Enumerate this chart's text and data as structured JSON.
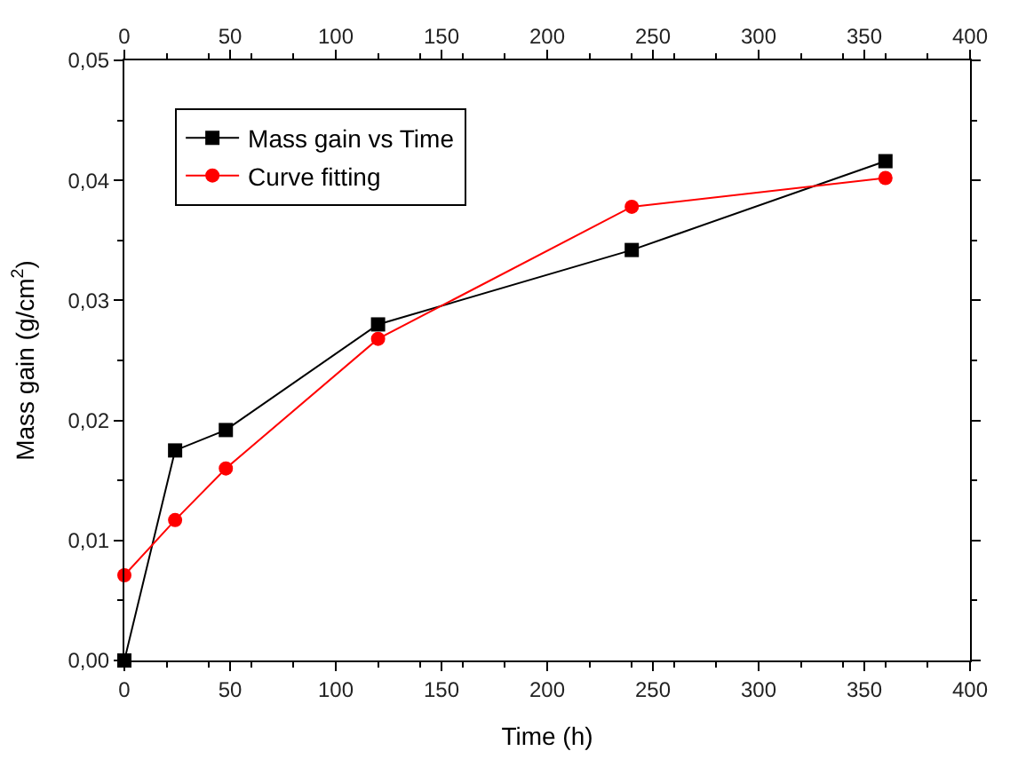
{
  "chart_data": {
    "type": "line",
    "xlabel": "Time (h)",
    "ylabel": "Mass gain (g/cm$^{2}$)",
    "x": [
      0,
      24,
      48,
      120,
      240,
      360
    ],
    "series": [
      {
        "name": "Mass gain vs Time",
        "color": "#000000",
        "marker": "square",
        "values": [
          0.0,
          0.0175,
          0.0192,
          0.028,
          0.0342,
          0.0416
        ]
      },
      {
        "name": "Curve fitting",
        "color": "#ff0000",
        "marker": "circle",
        "values": [
          0.0071,
          0.0117,
          0.016,
          0.0268,
          0.0378,
          0.0402
        ]
      }
    ],
    "xlim": [
      0,
      400
    ],
    "xticks": [
      0,
      50,
      100,
      150,
      200,
      250,
      300,
      350,
      400
    ],
    "x2lim": [
      0,
      400
    ],
    "x2ticks": [
      0,
      50,
      100,
      150,
      200,
      250,
      300,
      350,
      400
    ],
    "ylim": [
      0,
      0.05
    ],
    "yticks": [
      {
        "value": 0,
        "label": "0,00"
      },
      {
        "value": 0.01,
        "label": "0,01"
      },
      {
        "value": 0.02,
        "label": "0,02"
      },
      {
        "value": 0.03,
        "label": "0,03"
      },
      {
        "value": 0.04,
        "label": "0,04"
      },
      {
        "value": 0.05,
        "label": "0,05"
      }
    ],
    "legend": "top left",
    "line_style": "solid"
  }
}
